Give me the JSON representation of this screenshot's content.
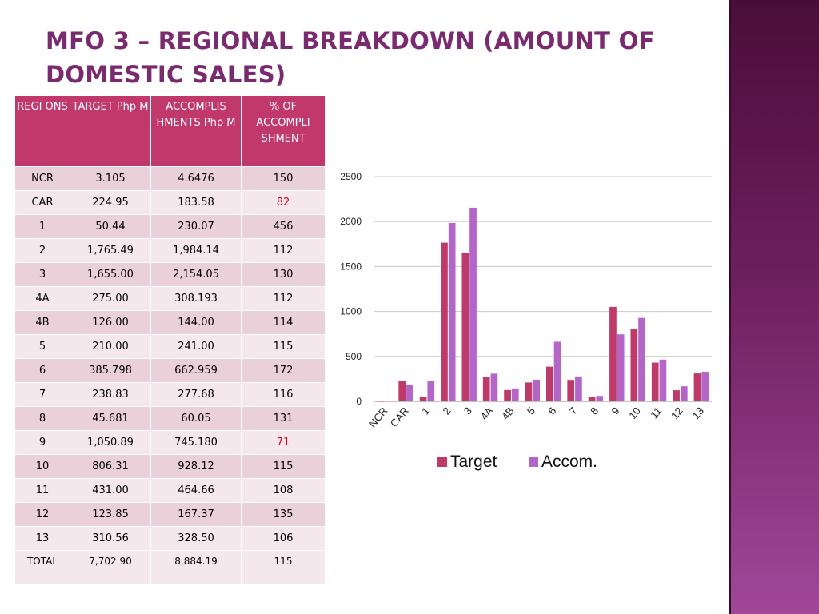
{
  "slide": {
    "title": "MFO 3 – REGIONAL BREAKDOWN (AMOUNT OF DOMESTIC SALES)"
  },
  "table": {
    "headers": [
      "REGI ONS",
      "TARGET Php M",
      "ACCOMPLIS HMENTS Php M",
      "% OF ACCOMPLI SHMENT"
    ],
    "rows": [
      [
        "NCR",
        "3.105",
        "4.6476",
        "150"
      ],
      [
        "CAR",
        "224.95",
        "183.58",
        "82"
      ],
      [
        "1",
        "50.44",
        "230.07",
        "456"
      ],
      [
        "2",
        "1,765.49",
        "1,984.14",
        "112"
      ],
      [
        "3",
        "1,655.00",
        "2,154.05",
        "130"
      ],
      [
        "4A",
        "275.00",
        "308.193",
        "112"
      ],
      [
        "4B",
        "126.00",
        "144.00",
        "114"
      ],
      [
        "5",
        "210.00",
        "241.00",
        "115"
      ],
      [
        "6",
        "385.798",
        "662.959",
        "172"
      ],
      [
        "7",
        "238.83",
        "277.68",
        "116"
      ],
      [
        "8",
        "45.681",
        "60.05",
        "131"
      ],
      [
        "9",
        "1,050.89",
        "745.180",
        "71"
      ],
      [
        "10",
        "806.31",
        "928.12",
        "115"
      ],
      [
        "11",
        "431.00",
        "464.66",
        "108"
      ],
      [
        "12",
        "123.85",
        "167.37",
        "135"
      ],
      [
        "13",
        "310.56",
        "328.50",
        "106"
      ],
      [
        "TOTAL",
        "7,702.90",
        "8,884.19",
        "115"
      ]
    ]
  },
  "chart_data": {
    "type": "bar",
    "categories": [
      "NCR",
      "CAR",
      "1",
      "2",
      "3",
      "4A",
      "4B",
      "5",
      "6",
      "7",
      "8",
      "9",
      "10",
      "11",
      "12",
      "13"
    ],
    "series": [
      {
        "name": "Target",
        "color": "#be3a68",
        "values": [
          3.105,
          224.95,
          50.44,
          1765.49,
          1655.0,
          275.0,
          126.0,
          210.0,
          385.798,
          238.83,
          45.681,
          1050.89,
          806.31,
          431.0,
          123.85,
          310.56
        ]
      },
      {
        "name": "Accom.",
        "color": "#b466c8",
        "values": [
          4.6476,
          183.58,
          230.07,
          1984.14,
          2154.05,
          308.193,
          144.0,
          241.0,
          662.959,
          277.68,
          60.05,
          745.18,
          928.12,
          464.66,
          167.37,
          328.5
        ]
      }
    ],
    "ylim": [
      0,
      2500
    ],
    "yticks": [
      0,
      500,
      1000,
      1500,
      2000,
      2500
    ],
    "grid": true,
    "legend_position": "bottom",
    "title": "",
    "xlabel": "",
    "ylabel": ""
  },
  "colors": {
    "title": "#7a2a6e",
    "header": "#c0396a",
    "row_odd": "#ead0d8",
    "row_even": "#f5e8ec",
    "below_target": "#e0001a"
  }
}
